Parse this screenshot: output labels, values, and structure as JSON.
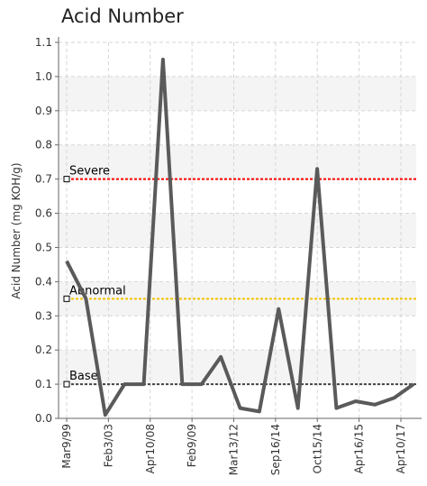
{
  "chart_data": {
    "type": "line",
    "title": "Acid Number",
    "ylabel": "Acid Number (mg KOH/g)",
    "xlabel": "",
    "ylim": [
      0,
      1.1
    ],
    "y_ticks": [
      "0.0",
      "0.1",
      "0.2",
      "0.3",
      "0.4",
      "0.5",
      "0.6",
      "0.7",
      "0.8",
      "0.9",
      "1.0",
      "1.1"
    ],
    "grid": true,
    "x_tick_labels": [
      "Mar9/99",
      "Feb3/03",
      "Apr10/08",
      "Feb9/09",
      "Mar13/12",
      "Sep16/14",
      "Oct15/14",
      "Apr16/15",
      "Apr10/17"
    ],
    "series": [
      {
        "color": "#5a5a5a",
        "values": [
          0.46,
          0.35,
          0.01,
          0.1,
          0.1,
          1.05,
          0.1,
          0.1,
          0.18,
          0.03,
          0.02,
          0.32,
          0.03,
          0.73,
          0.03,
          0.05,
          0.04,
          0.06,
          0.1
        ]
      }
    ],
    "reference_lines": [
      {
        "label": "Severe",
        "value": 0.7,
        "color": "#ff0000"
      },
      {
        "label": "Abnormal",
        "value": 0.35,
        "color": "#f2c200"
      },
      {
        "label": "Base",
        "value": 0.1,
        "color": "#444444"
      }
    ]
  }
}
